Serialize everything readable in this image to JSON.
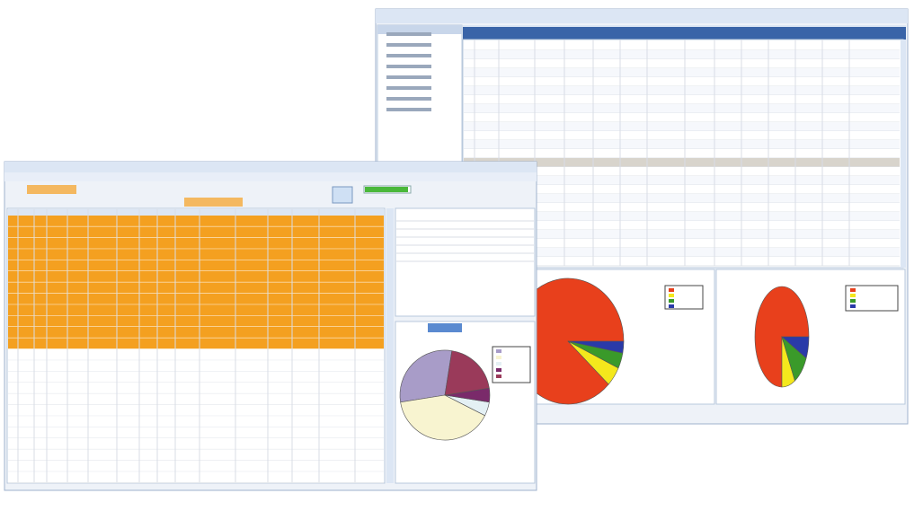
{
  "charts": [
    {
      "type": "pie",
      "values": [
        88,
        5,
        4,
        3
      ],
      "colors": [
        "#e8401c",
        "#f4e81c",
        "#3a9a2a",
        "#2a3aa8"
      ]
    },
    {
      "type": "pie",
      "values": [
        75,
        8,
        10,
        7
      ],
      "colors": [
        "#e8401c",
        "#f4e81c",
        "#3a9a2a",
        "#2a3aa8"
      ]
    },
    {
      "type": "pie",
      "values": [
        30,
        40,
        5,
        5,
        20
      ],
      "colors": [
        "#a89cc8",
        "#f8f4d0",
        "#e4f0f4",
        "#7a2a6a",
        "#9a3a5a"
      ]
    }
  ]
}
